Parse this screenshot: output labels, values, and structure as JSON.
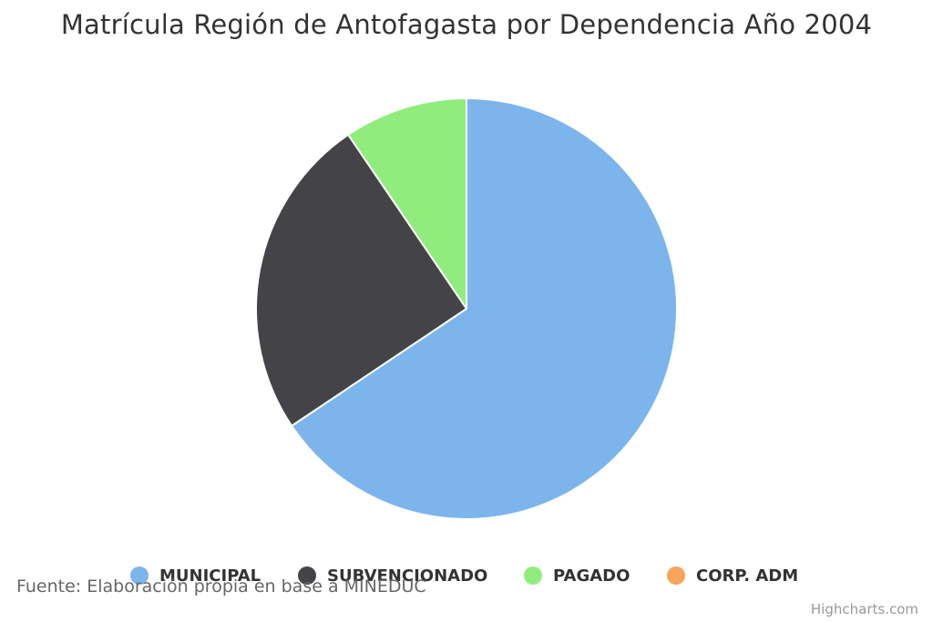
{
  "chart_data": {
    "type": "pie",
    "title": "Matrícula Región de Antofagasta por Dependencia Año 2004",
    "series": [
      {
        "data": [
          {
            "name": "MUNICIPAL",
            "value": 65.6,
            "color": "#7cb5ec"
          },
          {
            "name": "SUBVENCIONADO",
            "value": 24.9,
            "color": "#434348"
          },
          {
            "name": "PAGADO",
            "value": 9.5,
            "color": "#90ed7d"
          },
          {
            "name": "CORP. ADM",
            "value": 0.0,
            "color": "#f7a35c"
          }
        ]
      }
    ],
    "legend_position": "bottom",
    "grid": false
  },
  "credits": {
    "source": "Fuente: Elaboración propia en base a MINEDUC",
    "highcharts": "Highcharts.com"
  }
}
